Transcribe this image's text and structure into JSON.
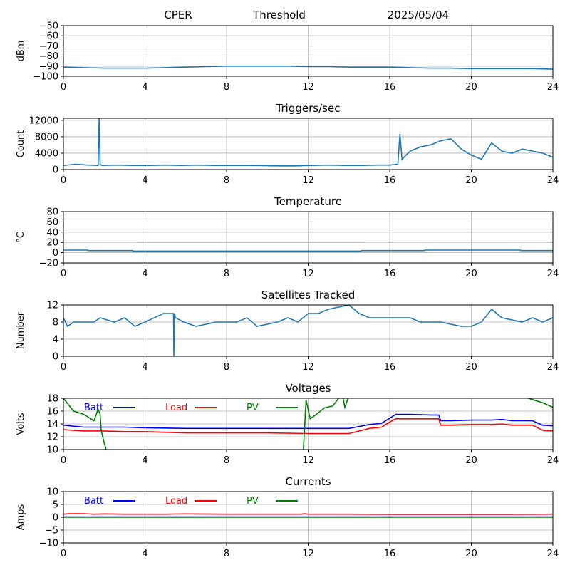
{
  "header": {
    "site": "CPER",
    "mode": "Threshold",
    "date": "2025/05/04"
  },
  "colors": {
    "series_default": "#1f77b4",
    "batt": "#0000ff",
    "load": "#ff0000",
    "pv": "#008000",
    "grid": "#b0b0b0"
  },
  "chart_data": [
    {
      "id": "dbm",
      "type": "line",
      "title": "",
      "xlabel": "",
      "ylabel": "dBm",
      "xlim": [
        0,
        24
      ],
      "ylim": [
        -100,
        -50
      ],
      "xticks": [
        0,
        4,
        8,
        12,
        16,
        20,
        24
      ],
      "yticks": [
        -100,
        -90,
        -80,
        -70,
        -60,
        -50
      ],
      "grid": true,
      "series": [
        {
          "x": [
            0,
            1,
            2,
            3,
            4,
            5,
            6,
            7,
            8,
            9,
            10,
            11,
            12,
            13,
            14,
            15,
            16,
            17,
            18,
            19,
            20,
            21,
            22,
            23,
            24
          ],
          "values": [
            -91,
            -91.5,
            -92,
            -92,
            -92,
            -91.5,
            -91,
            -90.5,
            -90,
            -90,
            -90,
            -90,
            -90.5,
            -90.5,
            -91,
            -91,
            -91,
            -91.5,
            -92,
            -92,
            -92.5,
            -92.5,
            -92.5,
            -92.5,
            -93
          ]
        }
      ]
    },
    {
      "id": "triggers",
      "type": "line",
      "title": "Triggers/sec",
      "xlabel": "",
      "ylabel": "Count",
      "xlim": [
        0,
        24
      ],
      "ylim": [
        0,
        12500
      ],
      "xticks": [
        0,
        4,
        8,
        12,
        16,
        20,
        24
      ],
      "yticks": [
        0,
        4000,
        8000,
        12000
      ],
      "grid": true,
      "series": [
        {
          "x": [
            0,
            0.6,
            1.2,
            1.7,
            1.75,
            1.8,
            1.9,
            2.6,
            3.4,
            4.2,
            5.0,
            5.8,
            6.6,
            7.4,
            8.2,
            9.0,
            9.8,
            10.6,
            11.4,
            12.2,
            13.0,
            13.8,
            14.6,
            15.4,
            16.0,
            16.4,
            16.5,
            16.6,
            17.0,
            17.5,
            18.0,
            18.5,
            19.0,
            19.5,
            20.0,
            20.5,
            21.0,
            21.5,
            22.0,
            22.5,
            23.0,
            23.5,
            24.0
          ],
          "values": [
            1000,
            1300,
            1100,
            1000,
            12500,
            1200,
            1000,
            1100,
            1000,
            1000,
            1100,
            1000,
            1100,
            1000,
            1000,
            1000,
            950,
            900,
            900,
            1000,
            1100,
            1000,
            1000,
            1100,
            1100,
            1300,
            8700,
            2500,
            4500,
            5500,
            6000,
            7000,
            7500,
            5000,
            3500,
            2500,
            6500,
            4500,
            4000,
            5000,
            4500,
            4000,
            3000
          ]
        }
      ]
    },
    {
      "id": "temperature",
      "type": "line",
      "title": "Temperature",
      "xlabel": "",
      "ylabel": "°C",
      "xlim": [
        0,
        24
      ],
      "ylim": [
        -20,
        80
      ],
      "xticks": [
        0,
        4,
        8,
        12,
        16,
        20,
        24
      ],
      "yticks": [
        -20,
        0,
        20,
        40,
        60,
        80
      ],
      "grid": true,
      "series": [
        {
          "x": [
            0,
            1.2,
            1.21,
            3.4,
            3.41,
            14.6,
            14.61,
            17.7,
            17.71,
            22.4,
            22.41,
            24
          ],
          "values": [
            5,
            5,
            4,
            4,
            3,
            3,
            4,
            4,
            5,
            5,
            4,
            4
          ]
        }
      ]
    },
    {
      "id": "satellites",
      "type": "line",
      "title": "Satellites Tracked",
      "xlabel": "",
      "ylabel": "Number",
      "xlim": [
        0,
        24
      ],
      "ylim": [
        0,
        12
      ],
      "xticks": [
        0,
        4,
        8,
        12,
        16,
        20,
        24
      ],
      "yticks": [
        0,
        4,
        8,
        12
      ],
      "grid": true,
      "series": [
        {
          "x": [
            0,
            0.2,
            0.5,
            1.5,
            1.8,
            2.5,
            3.0,
            3.5,
            4.0,
            4.9,
            5.4,
            5.41,
            5.45,
            5.5,
            5.9,
            6.5,
            7.5,
            8.5,
            9.0,
            9.5,
            10.5,
            11.0,
            11.5,
            12.0,
            12.5,
            13.0,
            14.0,
            14.5,
            15.0,
            16.0,
            17.0,
            17.5,
            18.5,
            19.5,
            20.0,
            20.5,
            21.0,
            21.5,
            22.5,
            23.0,
            23.5,
            24.0
          ],
          "values": [
            9,
            7,
            8,
            8,
            9,
            8,
            9,
            7,
            8,
            10,
            10,
            0,
            10,
            9,
            8,
            7,
            8,
            8,
            9,
            7,
            8,
            9,
            8,
            10,
            10,
            11,
            12,
            10,
            9,
            9,
            9,
            8,
            8,
            7,
            7,
            8,
            11,
            9,
            8,
            9,
            8,
            9
          ]
        }
      ]
    },
    {
      "id": "voltages",
      "type": "line",
      "title": "Voltages",
      "xlabel": "",
      "ylabel": "Volts",
      "xlim": [
        0,
        24
      ],
      "ylim": [
        10,
        18
      ],
      "xticks": [
        0,
        4,
        8,
        12,
        16,
        20,
        24
      ],
      "yticks": [
        10,
        12,
        14,
        16,
        18
      ],
      "grid": true,
      "legend_placement": "top-left",
      "series": [
        {
          "name": "Batt",
          "x": [
            0,
            1,
            2,
            3,
            4,
            6,
            8,
            10,
            12,
            13,
            14,
            15,
            15.6,
            16,
            16.3,
            17,
            18,
            18.4,
            18.5,
            19,
            20,
            21,
            21.5,
            22,
            23,
            23.5,
            24
          ],
          "values": [
            13.8,
            13.5,
            13.5,
            13.5,
            13.4,
            13.3,
            13.3,
            13.3,
            13.3,
            13.3,
            13.3,
            13.9,
            14.1,
            14.9,
            15.5,
            15.5,
            15.4,
            15.4,
            14.5,
            14.5,
            14.6,
            14.6,
            14.7,
            14.5,
            14.5,
            13.8,
            13.7
          ]
        },
        {
          "name": "Load",
          "x": [
            0,
            1,
            2,
            3,
            4,
            6,
            8,
            10,
            12,
            13,
            14,
            15,
            15.6,
            16,
            16.3,
            17,
            18,
            18.4,
            18.5,
            19,
            20,
            21,
            21.5,
            22,
            23,
            23.5,
            24
          ],
          "values": [
            13.1,
            12.9,
            12.9,
            12.8,
            12.8,
            12.6,
            12.6,
            12.6,
            12.5,
            12.5,
            12.5,
            13.3,
            13.5,
            14.3,
            14.8,
            14.8,
            14.8,
            14.8,
            13.8,
            13.8,
            13.9,
            13.9,
            14.0,
            13.8,
            13.8,
            13.0,
            12.9
          ]
        },
        {
          "name": "PV",
          "x": [
            0,
            0.5,
            1,
            1.5,
            1.7,
            1.8,
            1.85,
            2.0,
            2.1,
            2.2,
            11.75,
            11.9,
            12.1,
            12.4,
            12.8,
            13.2,
            13.5,
            13.7,
            13.8,
            13.9,
            14.0,
            14.05,
            22.6,
            23.0,
            23.5,
            24.0
          ],
          "values": [
            18,
            16,
            15.5,
            14.5,
            16.3,
            15.5,
            13,
            11,
            10,
            9,
            9,
            17.7,
            14.8,
            15.5,
            16.5,
            16.8,
            18,
            18.2,
            16.6,
            17.5,
            18.5,
            19,
            18.2,
            17.8,
            17.3,
            16.6
          ]
        }
      ]
    },
    {
      "id": "currents",
      "type": "line",
      "title": "Currents",
      "xlabel": "",
      "ylabel": "Amps",
      "xlim": [
        0,
        24
      ],
      "ylim": [
        -10,
        10
      ],
      "xticks": [
        0,
        4,
        8,
        12,
        16,
        20,
        24
      ],
      "yticks": [
        -10,
        -5,
        0,
        5,
        10
      ],
      "grid": true,
      "legend_placement": "top-left",
      "series": [
        {
          "name": "Batt",
          "x": [
            0,
            24
          ],
          "values": [
            0.1,
            0.1
          ]
        },
        {
          "name": "Load",
          "x": [
            0,
            0.3,
            1,
            1.5,
            2,
            3,
            5,
            6,
            8,
            10,
            11.7,
            11.8,
            12,
            14,
            16,
            18,
            20,
            22,
            24
          ],
          "values": [
            1.2,
            1.4,
            1.4,
            1.2,
            1.3,
            1.2,
            1.2,
            1.3,
            1.2,
            1.2,
            1.2,
            1.4,
            1.2,
            1.2,
            1.1,
            1.1,
            1.1,
            1.1,
            1.2
          ]
        },
        {
          "name": "PV",
          "x": [
            0,
            24
          ],
          "values": [
            0,
            0
          ]
        }
      ]
    }
  ]
}
